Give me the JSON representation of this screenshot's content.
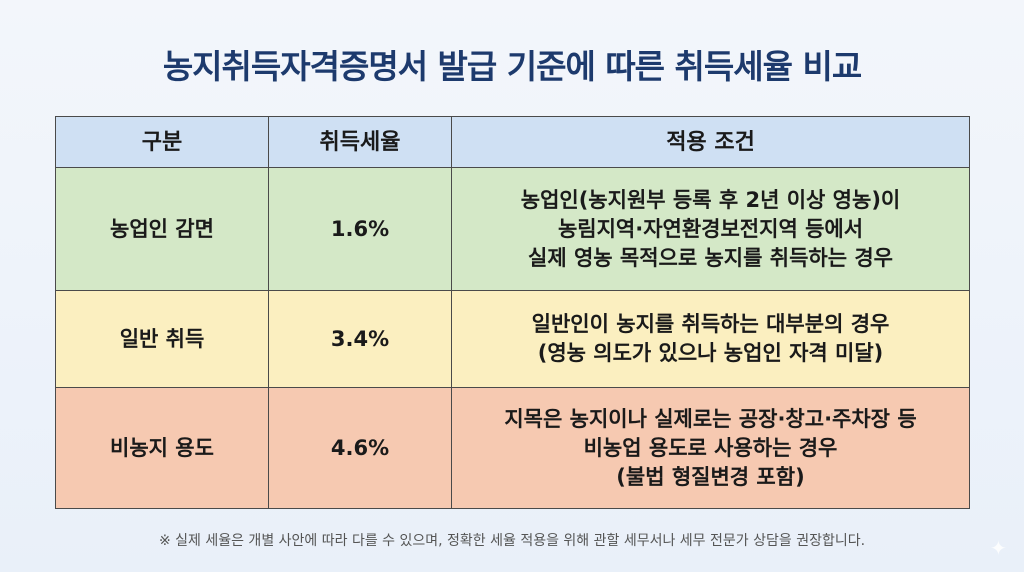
{
  "title": "농지취득자격증명서 발급 기준에 따른 취득세율 비교",
  "table": {
    "headers": [
      "구분",
      "취득세율",
      "적용 조건"
    ],
    "rows": [
      {
        "category": "농업인 감면",
        "rate": "1.6%",
        "condition": [
          "농업인(농지원부 등록 후 2년 이상 영농)이",
          "농림지역·자연환경보전지역 등에서",
          "실제 영농 목적으로 농지를 취득하는 경우"
        ],
        "color": "#d4e8c7"
      },
      {
        "category": "일반 취득",
        "rate": "3.4%",
        "condition": [
          "일반인이 농지를 취득하는 대부분의 경우",
          "(영농 의도가 있으나 농업인 자격 미달)"
        ],
        "color": "#fbefc0"
      },
      {
        "category": "비농지 용도",
        "rate": "4.6%",
        "condition": [
          "지목은 농지이나 실제로는 공장·창고·주차장 등",
          "비농업 용도로 사용하는 경우",
          "(불법 형질변경 포함)"
        ],
        "color": "#f6c9b1"
      }
    ]
  },
  "note": "※ 실제 세율은 개별 사안에 따라 다를 수 있으며, 정확한 세율 적용을 위해 관할 세무서나 세무 전문가 상담을 권장합니다.",
  "icons": {
    "corner": "sparkle-icon"
  },
  "colors": {
    "title": "#1d3a6d",
    "header": "#cfe0f3"
  }
}
